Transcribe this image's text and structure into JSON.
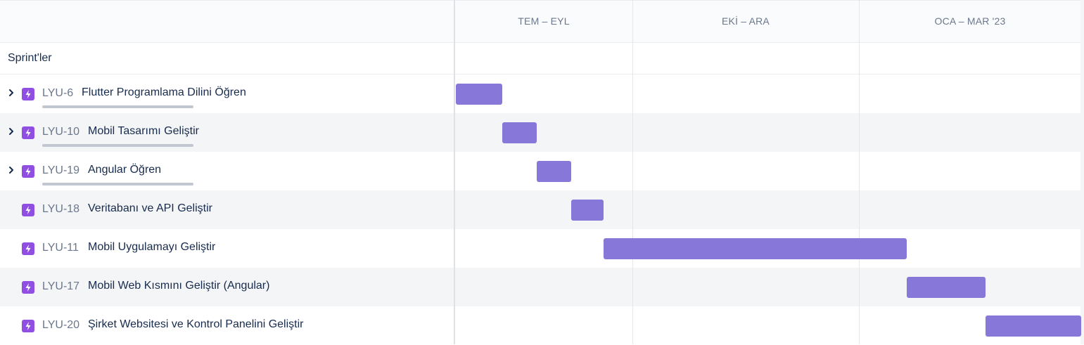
{
  "timeline": {
    "months": [
      "TEM – EYL",
      "EKİ – ARA",
      "OCA – MAR '23"
    ],
    "sprints_label": "Sprint'ler"
  },
  "colors": {
    "bar": "#8777d9",
    "issue_icon": "#904ee2",
    "row_alt": "#f4f5f7"
  },
  "issues": [
    {
      "key": "LYU-6",
      "title": "Flutter Programlama Dilini Öğren",
      "expandable": true,
      "icon": "lightning-icon"
    },
    {
      "key": "LYU-10",
      "title": "Mobil Tasarımı Geliştir",
      "expandable": true,
      "icon": "lightning-icon"
    },
    {
      "key": "LYU-19",
      "title": "Angular Öğren",
      "expandable": true,
      "icon": "lightning-icon"
    },
    {
      "key": "LYU-18",
      "title": "Veritabanı ve API Geliştir",
      "expandable": false,
      "icon": "lightning-icon"
    },
    {
      "key": "LYU-11",
      "title": "Mobil Uygulamayı Geliştir",
      "expandable": false,
      "icon": "lightning-icon"
    },
    {
      "key": "LYU-17",
      "title": "Mobil Web Kısmını Geliştir (Angular)",
      "expandable": false,
      "icon": "lightning-icon"
    },
    {
      "key": "LYU-20",
      "title": "Şirket Websitesi ve Kontrol Panelini Geliştir",
      "expandable": false,
      "icon": "lightning-icon"
    }
  ]
}
